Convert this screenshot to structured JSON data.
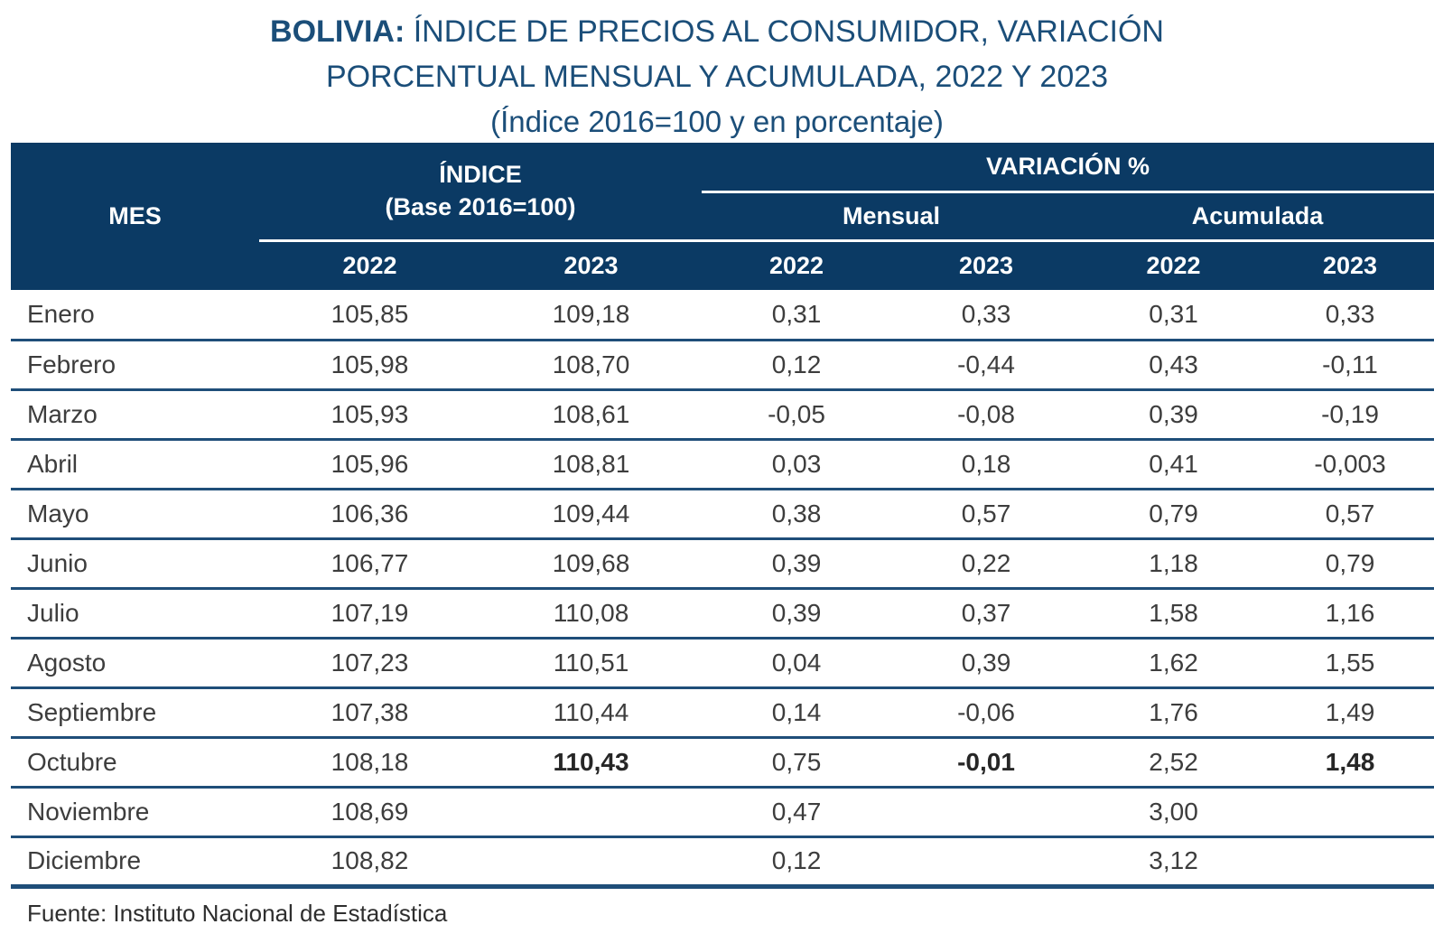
{
  "title": {
    "line1_bold": "BOLIVIA:",
    "line1_rest": " ÍNDICE DE PRECIOS AL CONSUMIDOR, VARIACIÓN",
    "line2": "PORCENTUAL MENSUAL Y ACUMULADA, 2022 Y 2023",
    "line3": "(Índice 2016=100 y en porcentaje)"
  },
  "table": {
    "headers": {
      "mes": "MES",
      "indice_line1": "ÍNDICE",
      "indice_line2": "(Base 2016=100)",
      "variacion": "VARIACIÓN %",
      "mensual": "Mensual",
      "acumulada": "Acumulada",
      "year_indice_2022": "2022",
      "year_indice_2023": "2023",
      "year_mensual_2022": "2022",
      "year_mensual_2023": "2023",
      "year_acumulada_2022": "2022",
      "year_acumulada_2023": "2023"
    },
    "rows": [
      {
        "mes": "Enero",
        "values": [
          "105,85",
          "109,18",
          "0,31",
          "0,33",
          "0,31",
          "0,33"
        ],
        "bold": []
      },
      {
        "mes": "Febrero",
        "values": [
          "105,98",
          "108,70",
          "0,12",
          "-0,44",
          "0,43",
          "-0,11"
        ],
        "bold": []
      },
      {
        "mes": "Marzo",
        "values": [
          "105,93",
          "108,61",
          "-0,05",
          "-0,08",
          "0,39",
          "-0,19"
        ],
        "bold": []
      },
      {
        "mes": "Abril",
        "values": [
          "105,96",
          "108,81",
          "0,03",
          "0,18",
          "0,41",
          "-0,003"
        ],
        "bold": []
      },
      {
        "mes": "Mayo",
        "values": [
          "106,36",
          "109,44",
          "0,38",
          "0,57",
          "0,79",
          "0,57"
        ],
        "bold": []
      },
      {
        "mes": "Junio",
        "values": [
          "106,77",
          "109,68",
          "0,39",
          "0,22",
          "1,18",
          "0,79"
        ],
        "bold": []
      },
      {
        "mes": "Julio",
        "values": [
          "107,19",
          "110,08",
          "0,39",
          "0,37",
          "1,58",
          "1,16"
        ],
        "bold": []
      },
      {
        "mes": "Agosto",
        "values": [
          "107,23",
          "110,51",
          "0,04",
          "0,39",
          "1,62",
          "1,55"
        ],
        "bold": []
      },
      {
        "mes": "Septiembre",
        "values": [
          "107,38",
          "110,44",
          "0,14",
          "-0,06",
          "1,76",
          "1,49"
        ],
        "bold": []
      },
      {
        "mes": "Octubre",
        "values": [
          "108,18",
          "110,43",
          "0,75",
          "-0,01",
          "2,52",
          "1,48"
        ],
        "bold": [
          1,
          3,
          5
        ]
      },
      {
        "mes": "Noviembre",
        "values": [
          "108,69",
          "",
          "0,47",
          "",
          "3,00",
          ""
        ],
        "bold": []
      },
      {
        "mes": "Diciembre",
        "values": [
          "108,82",
          "",
          "0,12",
          "",
          "3,12",
          ""
        ],
        "bold": []
      }
    ]
  },
  "footer": {
    "source": "Fuente: Instituto Nacional de Estadística"
  },
  "colors": {
    "header_bg": "#0b3a64",
    "row_divider": "#1f4e79",
    "title_text": "#1b4e79",
    "header_text": "#ffffff",
    "body_text": "#3d3d3d"
  },
  "chart_data": {
    "type": "table",
    "title": "BOLIVIA: ÍNDICE DE PRECIOS AL CONSUMIDOR, VARIACIÓN PORCENTUAL MENSUAL Y ACUMULADA, 2022 Y 2023 (Índice 2016=100 y en porcentaje)",
    "columns": [
      "MES",
      "ÍNDICE (Base 2016=100) 2022",
      "ÍNDICE (Base 2016=100) 2023",
      "VARIACIÓN % Mensual 2022",
      "VARIACIÓN % Mensual 2023",
      "VARIACIÓN % Acumulada 2022",
      "VARIACIÓN % Acumulada 2023"
    ],
    "rows": [
      [
        "Enero",
        105.85,
        109.18,
        0.31,
        0.33,
        0.31,
        0.33
      ],
      [
        "Febrero",
        105.98,
        108.7,
        0.12,
        -0.44,
        0.43,
        -0.11
      ],
      [
        "Marzo",
        105.93,
        108.61,
        -0.05,
        -0.08,
        0.39,
        -0.19
      ],
      [
        "Abril",
        105.96,
        108.81,
        0.03,
        0.18,
        0.41,
        -0.003
      ],
      [
        "Mayo",
        106.36,
        109.44,
        0.38,
        0.57,
        0.79,
        0.57
      ],
      [
        "Junio",
        106.77,
        109.68,
        0.39,
        0.22,
        1.18,
        0.79
      ],
      [
        "Julio",
        107.19,
        110.08,
        0.39,
        0.37,
        1.58,
        1.16
      ],
      [
        "Agosto",
        107.23,
        110.51,
        0.04,
        0.39,
        1.62,
        1.55
      ],
      [
        "Septiembre",
        107.38,
        110.44,
        0.14,
        -0.06,
        1.76,
        1.49
      ],
      [
        "Octubre",
        108.18,
        110.43,
        0.75,
        -0.01,
        2.52,
        1.48
      ],
      [
        "Noviembre",
        108.69,
        null,
        0.47,
        null,
        3.0,
        null
      ],
      [
        "Diciembre",
        108.82,
        null,
        0.12,
        null,
        3.12,
        null
      ]
    ],
    "notes": "Values for Octubre 2023 (110,43; -0,01; 1,48) shown in bold. Decimal separator is comma in display.",
    "source": "Fuente: Instituto Nacional de Estadística"
  }
}
